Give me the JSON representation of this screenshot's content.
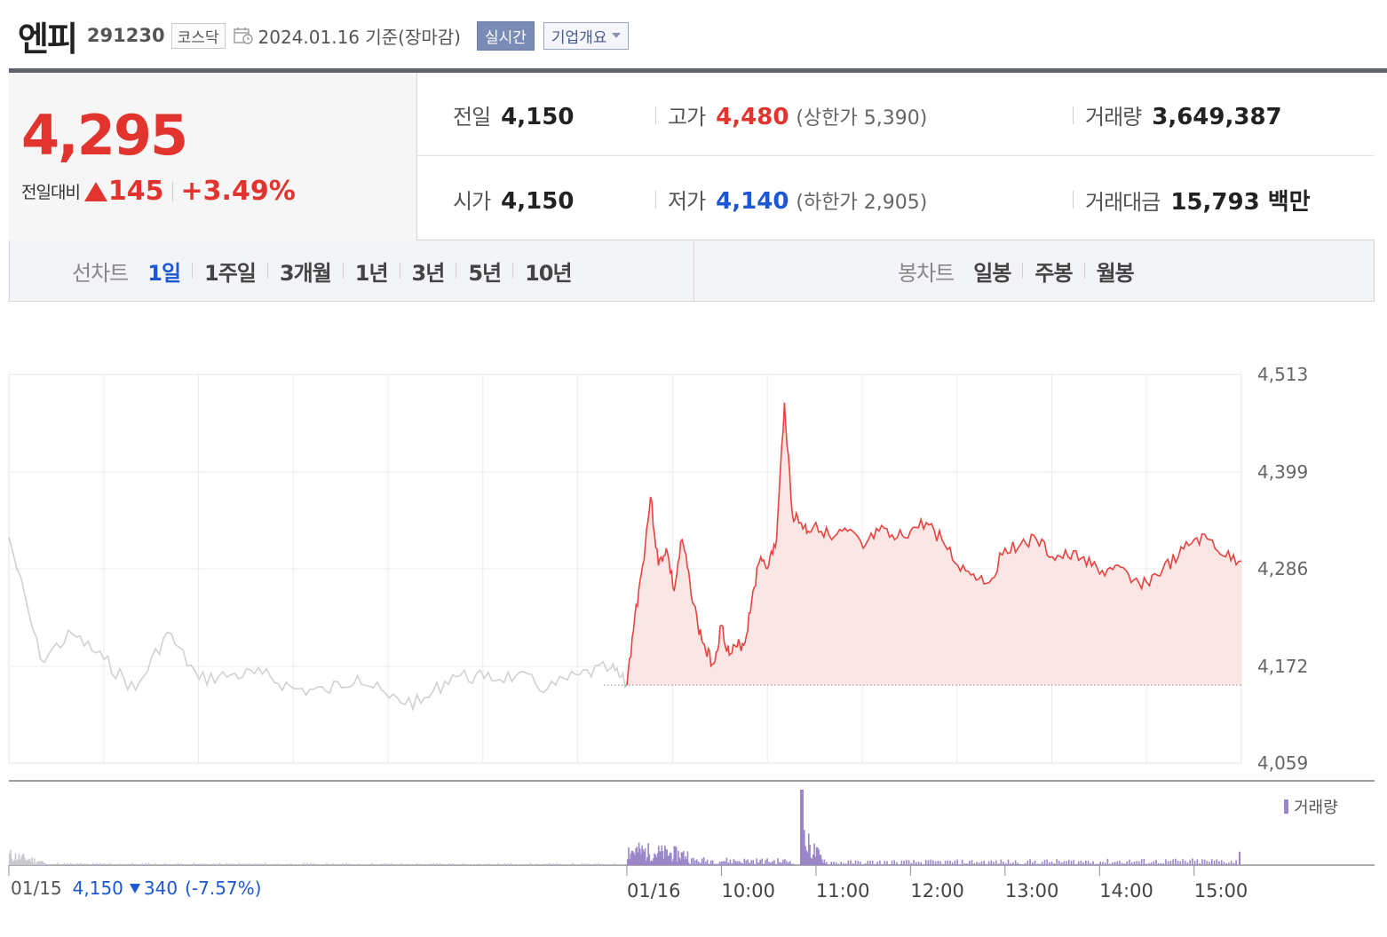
{
  "header": {
    "name": "엔피",
    "code": "291230",
    "market": "코스닥",
    "as_of": "2024.01.16  기준(장마감)",
    "realtime_label": "실시간",
    "company_label": "기업개요"
  },
  "quote": {
    "price": "4,295",
    "change_label": "전일대비",
    "change": "145",
    "change_pct": "+3.49%",
    "prev_close_label": "전일",
    "prev_close": "4,150",
    "high_label": "고가",
    "high": "4,480",
    "upper_limit": "(상한가 5,390)",
    "volume_label": "거래량",
    "volume": "3,649,387",
    "open_label": "시가",
    "open": "4,150",
    "low_label": "저가",
    "low": "4,140",
    "lower_limit": "(하한가 2,905)",
    "value_label": "거래대금",
    "value": "15,793 백만"
  },
  "tabs": {
    "line_label": "선차트",
    "line_items": [
      "1일",
      "1주일",
      "3개월",
      "1년",
      "3년",
      "5년",
      "10년"
    ],
    "active": "1일",
    "candle_label": "봉차트",
    "candle_items": [
      "일봉",
      "주봉",
      "월봉"
    ]
  },
  "prev_day_note": {
    "date": "01/15",
    "close": "4,150",
    "change": "340",
    "change_pct": "(-7.57%)"
  },
  "chart_data": {
    "type": "line",
    "title": "",
    "y_ticks": [
      "4,513",
      "4,399",
      "4,286",
      "4,172",
      "4,059"
    ],
    "ylim": [
      4059,
      4513
    ],
    "x_ticks": [
      "01/15",
      "01/16",
      "10:00",
      "11:00",
      "12:00",
      "13:00",
      "14:00",
      "15:00"
    ],
    "baseline": 4150,
    "legend": "거래량",
    "colors": {
      "today_line": "#e8433e",
      "today_fill": "#fbe6e6",
      "prev_line": "#cfd1d5",
      "volume_today": "#9a86c9",
      "volume_prev": "#c8cacf"
    },
    "series": [
      {
        "name": "01/15",
        "x": [
          "09:00",
          "09:20",
          "09:40",
          "10:00",
          "10:20",
          "10:40",
          "11:00",
          "11:20",
          "11:40",
          "12:00",
          "12:20",
          "12:40",
          "13:00",
          "13:20",
          "13:40",
          "14:00",
          "14:20",
          "14:40",
          "15:00",
          "15:20",
          "15:30"
        ],
        "values": [
          4323,
          4180,
          4210,
          4180,
          4144,
          4212,
          4157,
          4162,
          4163,
          4146,
          4143,
          4161,
          4135,
          4129,
          4162,
          4158,
          4161,
          4146,
          4162,
          4170,
          4150
        ]
      },
      {
        "name": "01/16",
        "x": [
          "09:00",
          "09:05",
          "09:10",
          "09:15",
          "09:20",
          "09:25",
          "09:30",
          "09:35",
          "09:40",
          "09:45",
          "09:50",
          "09:55",
          "10:00",
          "10:05",
          "10:10",
          "10:15",
          "10:20",
          "10:25",
          "10:30",
          "10:35",
          "10:40",
          "10:45",
          "10:50",
          "10:55",
          "11:00",
          "11:10",
          "11:20",
          "11:30",
          "11:40",
          "11:50",
          "12:00",
          "12:10",
          "12:20",
          "12:30",
          "12:40",
          "12:50",
          "13:00",
          "13:10",
          "13:20",
          "13:30",
          "13:40",
          "13:50",
          "14:00",
          "14:10",
          "14:20",
          "14:30",
          "14:40",
          "14:50",
          "15:00",
          "15:10",
          "15:20",
          "15:30"
        ],
        "values": [
          4150,
          4230,
          4290,
          4370,
          4290,
          4310,
          4260,
          4320,
          4270,
          4220,
          4190,
          4175,
          4220,
          4185,
          4195,
          4200,
          4260,
          4300,
          4290,
          4320,
          4480,
          4350,
          4340,
          4330,
          4340,
          4320,
          4330,
          4310,
          4330,
          4320,
          4330,
          4340,
          4320,
          4290,
          4280,
          4270,
          4310,
          4315,
          4320,
          4300,
          4300,
          4300,
          4280,
          4290,
          4270,
          4270,
          4285,
          4300,
          4320,
          4320,
          4300,
          4295
        ]
      }
    ],
    "volume": {
      "x": [
        "01/15 09:00",
        "01/15 09:30",
        "01/15 15:30",
        "01/16 09:00",
        "01/16 09:30",
        "01/16 10:50",
        "01/16 15:30"
      ],
      "values": [
        30000,
        8000,
        10000,
        45000,
        30000,
        140000,
        25000
      ]
    }
  }
}
